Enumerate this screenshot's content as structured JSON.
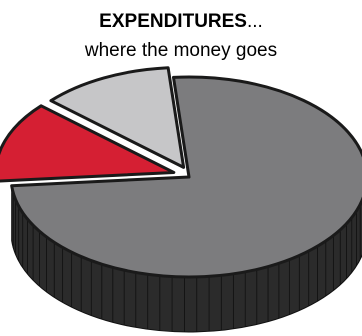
{
  "chart_data": {
    "type": "pie",
    "title": "EXPENDITURES",
    "title_suffix": "...",
    "subtitle": "where the money goes",
    "slices": [
      {
        "value": 75,
        "color": "#7c7c7e",
        "side_color": "#2b2b2b"
      },
      {
        "value": 13,
        "color": "#d51f33",
        "side_color": "#1e1e1e"
      },
      {
        "value": 12,
        "color": "#c6c6c8",
        "side_color": "#2b2b2b"
      }
    ],
    "legend": "none",
    "grid": false
  }
}
